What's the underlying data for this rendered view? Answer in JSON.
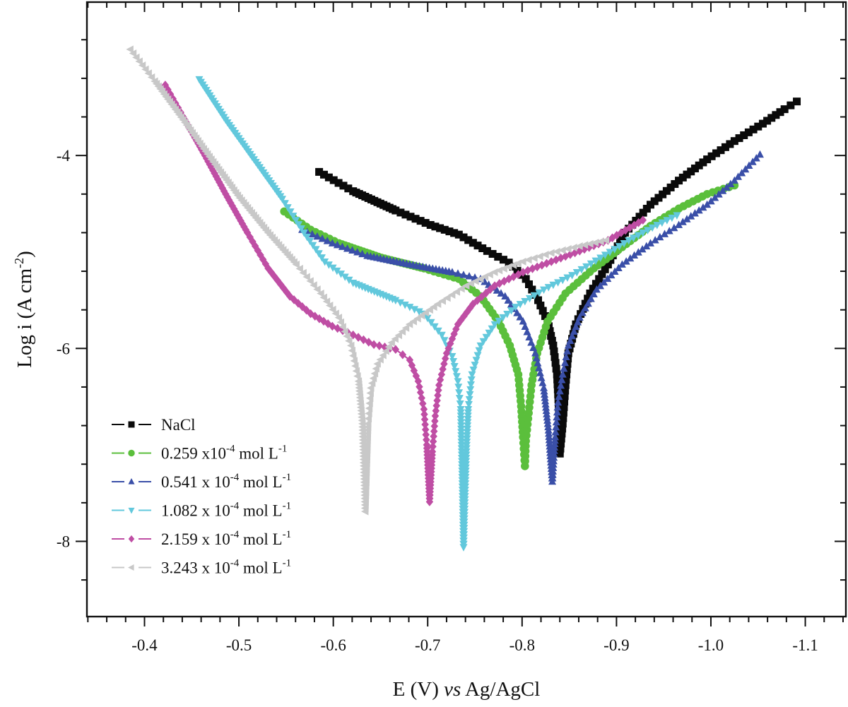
{
  "chart_data": {
    "type": "line",
    "title": "",
    "xlabel": "E (V) vs Ag/AgCl",
    "xlabel_parts": {
      "pre": "E (V) ",
      "italic": "vs",
      "post": " Ag/AgCl"
    },
    "ylabel": "Log i (A cm-2)",
    "ylabel_parts": {
      "base": "Log i (A cm",
      "sup": "-2",
      "end": ")"
    },
    "xlim": [
      -0.339,
      -1.143
    ],
    "ylim": [
      -8.78,
      -2.41
    ],
    "x_reversed": true,
    "x_ticks": [
      -0.4,
      -0.5,
      -0.6,
      -0.7,
      -0.8,
      -0.9,
      -1.0,
      -1.1
    ],
    "x_tick_labels": [
      "-0.4",
      "-0.5",
      "-0.6",
      "-0.7",
      "-0.8",
      "-0.9",
      "-1.0",
      "-1.1"
    ],
    "x_minor_step": 0.02,
    "y_ticks": [
      -4,
      -6,
      -8
    ],
    "y_tick_labels": [
      "-4",
      "-6",
      "-8"
    ],
    "y_minor_step": 0.4,
    "grid": false,
    "legend_position": "bottom-left",
    "series": [
      {
        "name": "NaCl",
        "label_parts": {
          "pre": "NaCl",
          "sup": "",
          "post": ""
        },
        "color": "#0a0a0a",
        "marker": "square",
        "x": [
          -0.585,
          -0.621,
          -0.666,
          -0.703,
          -0.733,
          -0.763,
          -0.786,
          -0.804,
          -0.817,
          -0.827,
          -0.833,
          -0.837,
          -0.839,
          -0.84,
          -0.843,
          -0.846,
          -0.849,
          -0.857,
          -0.872,
          -0.891,
          -0.909,
          -0.936,
          -0.966,
          -0.996,
          -1.025,
          -1.055,
          -1.078,
          -1.091
        ],
        "y": [
          -4.17,
          -4.37,
          -4.57,
          -4.72,
          -4.82,
          -4.99,
          -5.11,
          -5.28,
          -5.5,
          -5.72,
          -5.97,
          -6.27,
          -6.63,
          -7.09,
          -6.78,
          -6.38,
          -6.05,
          -5.75,
          -5.43,
          -5.13,
          -4.8,
          -4.51,
          -4.26,
          -4.04,
          -3.85,
          -3.67,
          -3.52,
          -3.44
        ]
      },
      {
        "name": "0.259 x10-4 mol L-1",
        "label_parts": {
          "pre": "0.259 x10",
          "sup": "-4",
          "post": " mol L",
          "sup2": "-1"
        },
        "color": "#5bbf3c",
        "marker": "circle",
        "x": [
          -0.548,
          -0.576,
          -0.606,
          -0.651,
          -0.696,
          -0.733,
          -0.756,
          -0.775,
          -0.787,
          -0.796,
          -0.799,
          -0.801,
          -0.803,
          -0.804,
          -0.807,
          -0.81,
          -0.816,
          -0.827,
          -0.846,
          -0.876,
          -0.906,
          -0.936,
          -0.966,
          -0.996,
          -1.025
        ],
        "y": [
          -4.58,
          -4.77,
          -4.91,
          -5.06,
          -5.17,
          -5.28,
          -5.46,
          -5.72,
          -5.97,
          -6.27,
          -6.6,
          -6.92,
          -7.22,
          -6.96,
          -6.67,
          -6.38,
          -6.05,
          -5.72,
          -5.43,
          -5.17,
          -4.95,
          -4.73,
          -4.55,
          -4.4,
          -4.31
        ]
      },
      {
        "name": "0.541 x 10-4 mol L-1",
        "label_parts": {
          "pre": "0.541 x 10",
          "sup": "-4",
          "post": " mol L",
          "sup2": "-1"
        },
        "color": "#3a4fa8",
        "marker": "triangle-up",
        "x": [
          -0.567,
          -0.599,
          -0.636,
          -0.681,
          -0.726,
          -0.756,
          -0.782,
          -0.801,
          -0.814,
          -0.823,
          -0.828,
          -0.832,
          -0.835,
          -0.838,
          -0.843,
          -0.849,
          -0.861,
          -0.879,
          -0.906,
          -0.936,
          -0.966,
          -0.996,
          -1.025,
          -1.052
        ],
        "y": [
          -4.77,
          -4.91,
          -5.04,
          -5.13,
          -5.21,
          -5.28,
          -5.46,
          -5.72,
          -6.05,
          -6.41,
          -6.85,
          -7.38,
          -6.92,
          -6.56,
          -6.27,
          -5.97,
          -5.68,
          -5.39,
          -5.13,
          -4.91,
          -4.72,
          -4.51,
          -4.26,
          -3.99
        ]
      },
      {
        "name": "1.082 x 10-4 mol L-1",
        "label_parts": {
          "pre": "1.082 x 10",
          "sup": "-4",
          "post": " mol L",
          "sup2": "-1"
        },
        "color": "#62c8dc",
        "marker": "triangle-down",
        "x": [
          -0.458,
          -0.486,
          -0.516,
          -0.546,
          -0.569,
          -0.591,
          -0.621,
          -0.666,
          -0.696,
          -0.715,
          -0.726,
          -0.732,
          -0.735,
          -0.736,
          -0.738,
          -0.741,
          -0.743,
          -0.747,
          -0.756,
          -0.771,
          -0.793,
          -0.823,
          -0.853,
          -0.883,
          -0.913,
          -0.943,
          -0.964
        ],
        "y": [
          -3.21,
          -3.63,
          -4.04,
          -4.45,
          -4.8,
          -5.1,
          -5.32,
          -5.5,
          -5.64,
          -5.86,
          -6.08,
          -6.34,
          -6.63,
          -7.07,
          -8.06,
          -7.07,
          -6.63,
          -6.27,
          -5.97,
          -5.75,
          -5.57,
          -5.39,
          -5.24,
          -5.06,
          -4.88,
          -4.72,
          -4.62
        ]
      },
      {
        "name": "2.159 x 10-4 mol L-1",
        "label_parts": {
          "pre": "2.159 x 10",
          "sup": "-4",
          "post": " mol L",
          "sup2": "-1"
        },
        "color": "#bf4ea4",
        "marker": "diamond",
        "x": [
          -0.422,
          -0.441,
          -0.464,
          -0.486,
          -0.509,
          -0.531,
          -0.554,
          -0.576,
          -0.599,
          -0.621,
          -0.643,
          -0.666,
          -0.681,
          -0.69,
          -0.696,
          -0.699,
          -0.702,
          -0.705,
          -0.708,
          -0.712,
          -0.72,
          -0.732,
          -0.748,
          -0.771,
          -0.801,
          -0.831,
          -0.861,
          -0.891,
          -0.928
        ],
        "y": [
          -3.27,
          -3.6,
          -4.0,
          -4.4,
          -4.8,
          -5.17,
          -5.46,
          -5.64,
          -5.77,
          -5.86,
          -5.96,
          -6.01,
          -6.12,
          -6.34,
          -6.63,
          -7.0,
          -7.59,
          -7.07,
          -6.7,
          -6.38,
          -6.05,
          -5.75,
          -5.54,
          -5.35,
          -5.21,
          -5.1,
          -4.99,
          -4.88,
          -4.67
        ]
      },
      {
        "name": "3.243 x 10-4 mol L-1",
        "label_parts": {
          "pre": "3.243 x 10",
          "sup": "-4",
          "post": " mol L",
          "sup2": "-1"
        },
        "color": "#c8c8c8",
        "marker": "triangle-left",
        "x": [
          -0.385,
          -0.411,
          -0.441,
          -0.471,
          -0.501,
          -0.531,
          -0.561,
          -0.587,
          -0.606,
          -0.619,
          -0.627,
          -0.631,
          -0.634,
          -0.637,
          -0.64,
          -0.647,
          -0.662,
          -0.681,
          -0.711,
          -0.741,
          -0.771,
          -0.801,
          -0.831,
          -0.861,
          -0.889
        ],
        "y": [
          -2.9,
          -3.23,
          -3.63,
          -4.04,
          -4.44,
          -4.8,
          -5.13,
          -5.43,
          -5.68,
          -5.97,
          -6.34,
          -6.78,
          -7.69,
          -6.78,
          -6.41,
          -6.16,
          -5.94,
          -5.75,
          -5.54,
          -5.35,
          -5.21,
          -5.1,
          -5.01,
          -4.94,
          -4.88
        ]
      }
    ]
  }
}
